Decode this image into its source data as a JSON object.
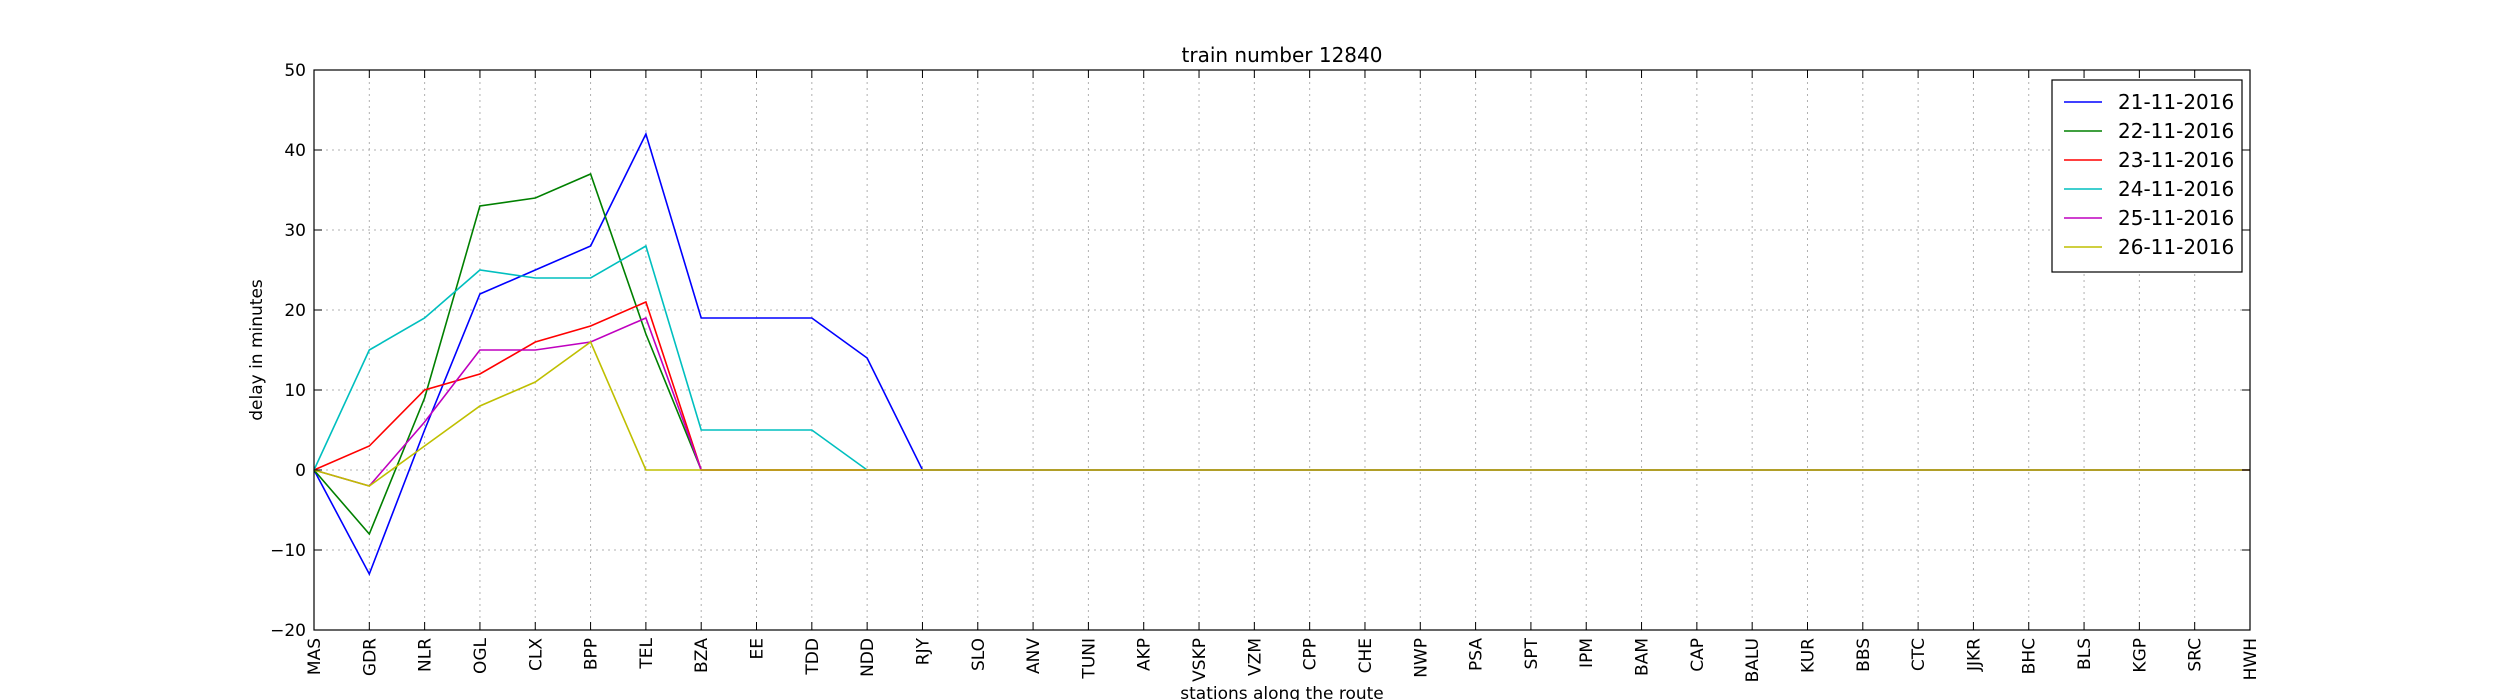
{
  "chart_data": {
    "type": "line",
    "title": "train number 12840",
    "xlabel": "stations along the route",
    "ylabel": "delay in minutes",
    "ylim": [
      -20,
      50
    ],
    "yticks": [
      -20,
      -10,
      0,
      10,
      20,
      30,
      40,
      50
    ],
    "grid": true,
    "legend_position": "top-right",
    "categories": [
      "MAS",
      "GDR",
      "NLR",
      "OGL",
      "CLX",
      "BPP",
      "TEL",
      "BZA",
      "EE",
      "TDD",
      "NDD",
      "RJY",
      "SLO",
      "ANV",
      "TUNI",
      "AKP",
      "VSKP",
      "VZM",
      "CPP",
      "CHE",
      "NWP",
      "PSA",
      "SPT",
      "IPM",
      "BAM",
      "CAP",
      "BALU",
      "KUR",
      "BBS",
      "CTC",
      "JJKR",
      "BHC",
      "BLS",
      "KGP",
      "SRC",
      "HWH"
    ],
    "series": [
      {
        "name": "21-11-2016",
        "color": "#0000ff",
        "values": [
          0,
          -13,
          5,
          22,
          25,
          28,
          42,
          19,
          19,
          19,
          14,
          0,
          0,
          0,
          0,
          0,
          0,
          0,
          0,
          0,
          0,
          0,
          0,
          0,
          0,
          0,
          0,
          0,
          0,
          0,
          0,
          0,
          0,
          0,
          0,
          0
        ]
      },
      {
        "name": "22-11-2016",
        "color": "#008000",
        "values": [
          0,
          -8,
          9,
          33,
          34,
          37,
          17,
          0,
          0,
          0,
          0,
          0,
          0,
          0,
          0,
          0,
          0,
          0,
          0,
          0,
          0,
          0,
          0,
          0,
          0,
          0,
          0,
          0,
          0,
          0,
          0,
          0,
          0,
          0,
          0,
          0
        ]
      },
      {
        "name": "23-11-2016",
        "color": "#ff0000",
        "values": [
          0,
          3,
          10,
          12,
          16,
          18,
          21,
          0,
          0,
          0,
          0,
          0,
          0,
          0,
          0,
          0,
          0,
          0,
          0,
          0,
          0,
          0,
          0,
          0,
          0,
          0,
          0,
          0,
          0,
          0,
          0,
          0,
          0,
          0,
          0,
          0
        ]
      },
      {
        "name": "24-11-2016",
        "color": "#00bfbf",
        "values": [
          0,
          15,
          19,
          25,
          24,
          24,
          28,
          5,
          5,
          5,
          0,
          0,
          0,
          0,
          0,
          0,
          0,
          0,
          0,
          0,
          0,
          0,
          0,
          0,
          0,
          0,
          0,
          0,
          0,
          0,
          0,
          0,
          0,
          0,
          0,
          0
        ]
      },
      {
        "name": "25-11-2016",
        "color": "#bf00bf",
        "values": [
          0,
          -2,
          6,
          15,
          15,
          16,
          19,
          0,
          0,
          0,
          0,
          0,
          0,
          0,
          0,
          0,
          0,
          0,
          0,
          0,
          0,
          0,
          0,
          0,
          0,
          0,
          0,
          0,
          0,
          0,
          0,
          0,
          0,
          0,
          0,
          0
        ]
      },
      {
        "name": "26-11-2016",
        "color": "#bfbf00",
        "values": [
          0,
          -2,
          3,
          8,
          11,
          16,
          0,
          0,
          0,
          0,
          0,
          0,
          0,
          0,
          0,
          0,
          0,
          0,
          0,
          0,
          0,
          0,
          0,
          0,
          0,
          0,
          0,
          0,
          0,
          0,
          0,
          0,
          0,
          0,
          0,
          0
        ]
      }
    ]
  }
}
